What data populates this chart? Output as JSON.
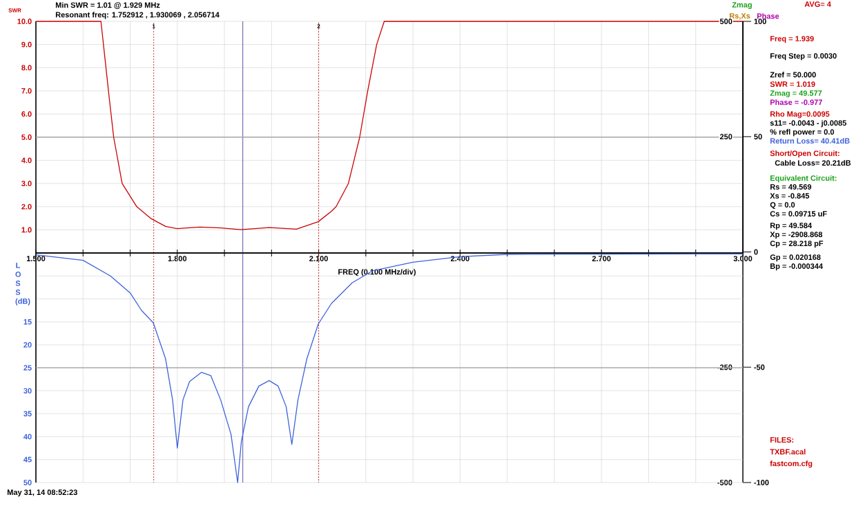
{
  "chart_data": [
    {
      "type": "line",
      "ylabel": "SWR",
      "xlabel": "FREQ (0.100 MHz/div)",
      "annotations": [
        "Min SWR = 1.01 @ 1.929 MHz",
        "Resonant freq: 1.752912 , 1.930069 , 2.056714",
        "Rs,Xs",
        {
          "text": "1",
          "x": 1.75,
          "y": 10
        },
        {
          "text": "2",
          "x": 2.1,
          "y": 10
        }
      ],
      "x": [
        1.5,
        1.6,
        1.638,
        1.646,
        1.655,
        1.665,
        1.683,
        1.714,
        1.743,
        1.775,
        1.8,
        1.848,
        1.892,
        1.935,
        1.995,
        2.053,
        2.099,
        2.127,
        2.137,
        2.163,
        2.175,
        2.187,
        2.204,
        2.223,
        2.239,
        2.5,
        3.0
      ],
      "series": [
        {
          "color": "#cc0000",
          "values": [
            10,
            10,
            10,
            8.5,
            6.8,
            5.0,
            3.0,
            2.0,
            1.5,
            1.15,
            1.05,
            1.12,
            1.08,
            1.01,
            1.1,
            1.03,
            1.35,
            1.8,
            2.0,
            3.0,
            4.0,
            5.0,
            7.0,
            9.0,
            10,
            10,
            10
          ]
        }
      ],
      "xlim": [
        1.5,
        3.0
      ],
      "ylim": [
        0,
        10
      ],
      "xticks": [
        {
          "value": 1.5,
          "label": "1.500"
        },
        {
          "value": 1.6,
          "label": null
        },
        {
          "value": 1.7,
          "label": null
        },
        {
          "value": 1.8,
          "label": "1.800"
        },
        {
          "value": 1.9,
          "label": null
        },
        {
          "value": 2.0,
          "label": null
        },
        {
          "value": 2.1,
          "label": "2.100"
        },
        {
          "value": 2.2,
          "label": null
        },
        {
          "value": 2.3,
          "label": null
        },
        {
          "value": 2.4,
          "label": "2.400"
        },
        {
          "value": 2.5,
          "label": null
        },
        {
          "value": 2.6,
          "label": null
        },
        {
          "value": 2.7,
          "label": "2.700"
        },
        {
          "value": 2.8,
          "label": null
        },
        {
          "value": 2.9,
          "label": null
        },
        {
          "value": 3.0,
          "label": "3.000"
        }
      ],
      "yticks": [
        {
          "value": 1,
          "label": "1.0"
        },
        {
          "value": 2,
          "label": "2.0"
        },
        {
          "value": 3,
          "label": "3.0"
        },
        {
          "value": 4,
          "label": "4.0"
        },
        {
          "value": 5,
          "label": "5.0"
        },
        {
          "value": 6,
          "label": "6.0"
        },
        {
          "value": 7,
          "label": "7.0"
        },
        {
          "value": 8,
          "label": "8.0"
        },
        {
          "value": 9,
          "label": "9.0"
        },
        {
          "value": 10,
          "label": "10.0"
        }
      ],
      "y2label": "Zmag",
      "y2lim": [
        -500,
        500
      ],
      "y2ticks": [
        -500,
        -250,
        {
          "value": 0,
          "label": null
        },
        250,
        500
      ],
      "y3label": "Phase",
      "y3lim": [
        -100,
        100
      ],
      "y3ticks": [
        -100,
        -50,
        0,
        50,
        100
      ],
      "grid": true,
      "ref_lines": [
        {
          "axis": "x",
          "value": 1.75,
          "color": "#cc0000",
          "line_style": "dashed"
        },
        {
          "axis": "x",
          "value": 2.1,
          "color": "#cc0000",
          "line_style": "dashed"
        },
        {
          "axis": "x",
          "value": 1.939,
          "color": "#2a2a90",
          "line_style": "solid"
        },
        {
          "axis": "y",
          "value": 5,
          "color": "#a8a8a8",
          "line_style": "solid"
        }
      ]
    },
    {
      "type": "line",
      "ylabel": "L O S S (dB)",
      "annotations": [
        "May 31, 14 08:52:23"
      ],
      "x": [
        1.5,
        1.6,
        1.658,
        1.7,
        1.724,
        1.749,
        1.775,
        1.79,
        1.8,
        1.812,
        1.826,
        1.851,
        1.871,
        1.892,
        1.914,
        1.928,
        1.936,
        1.951,
        1.973,
        1.995,
        2.014,
        2.031,
        2.043,
        2.056,
        2.075,
        2.099,
        2.127,
        2.171,
        2.214,
        2.3,
        2.4,
        2.5,
        3.0
      ],
      "series": [
        {
          "color": "#3d62dc",
          "values": [
            0.4,
            1.6,
            5,
            8.7,
            12.5,
            15.2,
            23,
            32,
            42.5,
            32,
            28,
            26,
            26.7,
            32,
            39.5,
            50,
            41,
            33.5,
            29,
            27.8,
            29,
            33.5,
            41.7,
            32,
            23,
            15.5,
            11,
            6.5,
            3.9,
            2,
            0.8,
            0.3,
            0.2
          ]
        }
      ],
      "xlim": [
        1.5,
        3.0
      ],
      "ylim": [
        50,
        0
      ],
      "xticks": [
        1.5,
        1.6,
        1.7,
        1.8,
        1.9,
        2.0,
        2.1,
        2.2,
        2.3,
        2.4,
        2.5,
        2.6,
        2.7,
        2.8,
        2.9,
        3.0
      ],
      "yticks": [
        {
          "value": 5,
          "label": null
        },
        {
          "value": 10,
          "label": null
        },
        15,
        20,
        25,
        30,
        35,
        40,
        45,
        50
      ],
      "tick_labels": "y",
      "grid": true,
      "ref_lines": [
        {
          "axis": "x",
          "value": 1.75,
          "color": "#cc0000",
          "line_style": "dashed"
        },
        {
          "axis": "x",
          "value": 2.1,
          "color": "#cc0000",
          "line_style": "dashed"
        },
        {
          "axis": "x",
          "value": 1.939,
          "color": "#2a2a90",
          "line_style": "solid"
        },
        {
          "axis": "y",
          "value": 25,
          "color": "#a8a8a8",
          "line_style": "solid"
        }
      ]
    },
    {
      "type": "other",
      "annotations": [
        "AVG= 4",
        "Freq = 1.939",
        "Freq Step = 0.0030",
        "Zref = 50.000",
        "SWR = 1.019",
        "Zmag = 49.577",
        "Phase = -0.977",
        "Rho Mag=0.0095",
        "s11= -0.0043 - j0.0085",
        "% refl power = 0.0",
        "Return Loss= 40.41dB",
        "Short/Open Circuit:",
        "Cable Loss= 20.21dB",
        "Equivalent Circuit:",
        "Rs = 49.569",
        "Xs = -0.845",
        "Q = 0.0",
        "Cs = 0.09715 uF",
        "Rp = 49.584",
        "Xp = -2908.868",
        "Cp = 28.218 pF",
        "Gp = 0.020168",
        "Bp = -0.000344",
        "FILES:",
        "TXBF.acal",
        "fastcom.cfg"
      ]
    }
  ]
}
